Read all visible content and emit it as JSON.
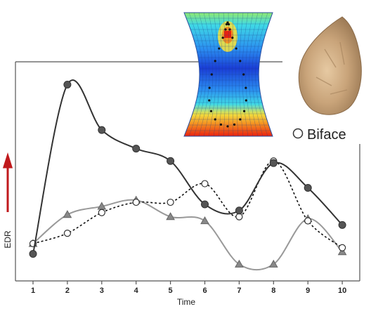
{
  "chart_data": {
    "type": "line",
    "x": [
      1,
      2,
      3,
      4,
      5,
      6,
      7,
      8,
      9,
      10
    ],
    "xlabel": "Time",
    "ylabel": "EDR",
    "xlim": [
      0.5,
      10.8
    ],
    "ylim": [
      0,
      100
    ],
    "grid": false,
    "legend_position": "top-right",
    "series": [
      {
        "name": "",
        "marker": "filled-circle",
        "line": "solid",
        "color": "#333333",
        "values": [
          9,
          91,
          69,
          60,
          54,
          33,
          30,
          53,
          41,
          23
        ]
      },
      {
        "name": "Biface",
        "marker": "open-circle",
        "line": "dotted",
        "color": "#111111",
        "values": [
          14,
          19,
          29,
          34,
          34,
          43,
          27,
          54,
          25,
          12
        ]
      },
      {
        "name": "",
        "marker": "filled-triangle",
        "line": "solid",
        "color": "#999999",
        "values": [
          14,
          28,
          32,
          35,
          27,
          25,
          4,
          4,
          26,
          10
        ]
      }
    ]
  },
  "colors": {
    "axis": "#444444",
    "edr_arrow": "#c0191c",
    "heatmap_scale": [
      "#1a3dd6",
      "#2a8cf0",
      "#3fd9e6",
      "#8fe870",
      "#f0e040",
      "#f59020",
      "#e82010"
    ]
  },
  "decorations": {
    "heatmap_icon": "deformed-grid-heatmap-icon",
    "artifact_icon": "handaxe-stone-icon",
    "edr_arrow_icon": "up-arrow-icon"
  }
}
